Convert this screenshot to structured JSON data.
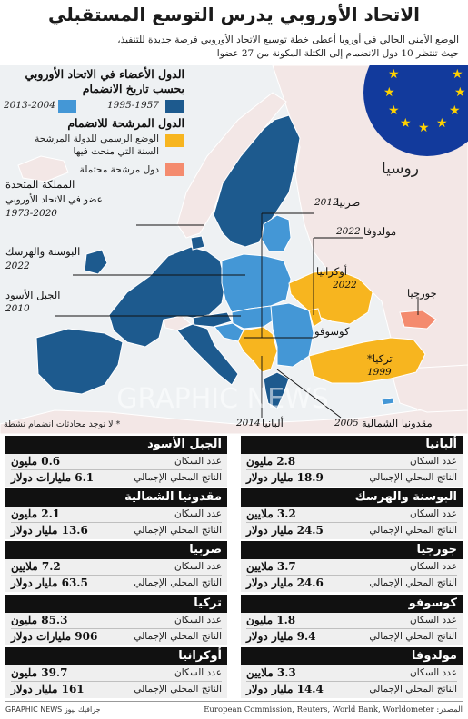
{
  "header": {
    "title": "الاتحاد الأوروبي يدرس التوسع المستقبلي",
    "subtitle_1": "الوضع الأمني الحالي في أوروبا أعطى خطة توسيع الاتحاد الأوروبي فرصة جديدة للتنفيذ،",
    "subtitle_2": "حيث تنتظر 10 دول الانضمام إلى الكتلة المكونة من 27 عضوا"
  },
  "colors": {
    "member_1957_1995": "#1d5a8e",
    "member_2004_2013": "#4497d6",
    "official_candidate": "#f7b51f",
    "potential_candidate": "#f48b6e",
    "non_eu_land": "#f3e7e6",
    "sea": "#eef1f3",
    "eu_flag_blue": "#123a9c",
    "eu_flag_star": "#ffd200"
  },
  "legend": {
    "members_head_1": "الدول الأعضاء في الاتحاد الأوروبي",
    "members_head_2": "بحسب تاريخ الانضمام",
    "range_old": "1995-1957",
    "range_new": "2013-2004",
    "candidates_head": "الدول المرشحة للانضمام",
    "official_1": "الوضع الرسمي للدولة المرشحة",
    "official_2": "السنة التي منحت فيها",
    "potential": "دول مرشحة محتملة"
  },
  "map_labels": {
    "russia": "روسيا",
    "uk_1": "المملكة المتحدة",
    "uk_2": "عضو في الاتحاد الأوروبي",
    "uk_years": "1973-2020",
    "serbia": "صربيا",
    "serbia_year": "2012",
    "moldova": "مولدوفا",
    "moldova_year": "2022",
    "ukraine": "أوكرانيا",
    "ukraine_year": "2022",
    "georgia": "جورجيا",
    "bosnia": "البوسنة والهرسك",
    "bosnia_year": "2022",
    "montenegro": "الجبل الأسود",
    "montenegro_year": "2010",
    "kosovo": "كوسوفو",
    "turkey": "تركيا*",
    "turkey_year": "1999",
    "albania": "ألبانيا",
    "albania_year": "2014",
    "north_macedonia": "مقدونيا الشمالية",
    "north_macedonia_year": "2005",
    "note": "* لا توجد محادثات انضمام نشطة",
    "watermark": "GRAPHIC NEWS"
  },
  "cards": {
    "population_label": "عدد السكان",
    "gdp_label": "الناتج المحلي الإجمالي",
    "right": [
      {
        "name": "ألبانيا",
        "population": "2.8 مليون",
        "gdp": "18.9 مليار دولار"
      },
      {
        "name": "البوسنة والهرسك",
        "population": "3.2 ملايين",
        "gdp": "24.5 مليار دولار"
      },
      {
        "name": "جورجيا",
        "population": "3.7 ملايين",
        "gdp": "24.6 مليار دولار"
      },
      {
        "name": "كوسوفو",
        "population": "1.8 مليون",
        "gdp": "9.4 مليار دولار"
      },
      {
        "name": "مولدوفا",
        "population": "3.3 ملايين",
        "gdp": "14.4 مليار دولار"
      }
    ],
    "left": [
      {
        "name": "الجبل الأسود",
        "population": "0.6 مليون",
        "gdp": "6.1 مليارات دولار"
      },
      {
        "name": "مقدونيا الشمالية",
        "population": "2.1 مليون",
        "gdp": "13.6 مليار دولار"
      },
      {
        "name": "صربيا",
        "population": "7.2 ملايين",
        "gdp": "63.5 مليار دولار"
      },
      {
        "name": "تركيا",
        "population": "85.3 مليون",
        "gdp": "906 مليارات دولار"
      },
      {
        "name": "أوكرانيا",
        "population": "39.7 مليون",
        "gdp": "161 مليار دولار"
      }
    ]
  },
  "footer": {
    "credit": "GRAPHIC NEWS جرافيك نيوز",
    "source": "المصدر: European Commission, Reuters, World Bank, Worldometer"
  }
}
